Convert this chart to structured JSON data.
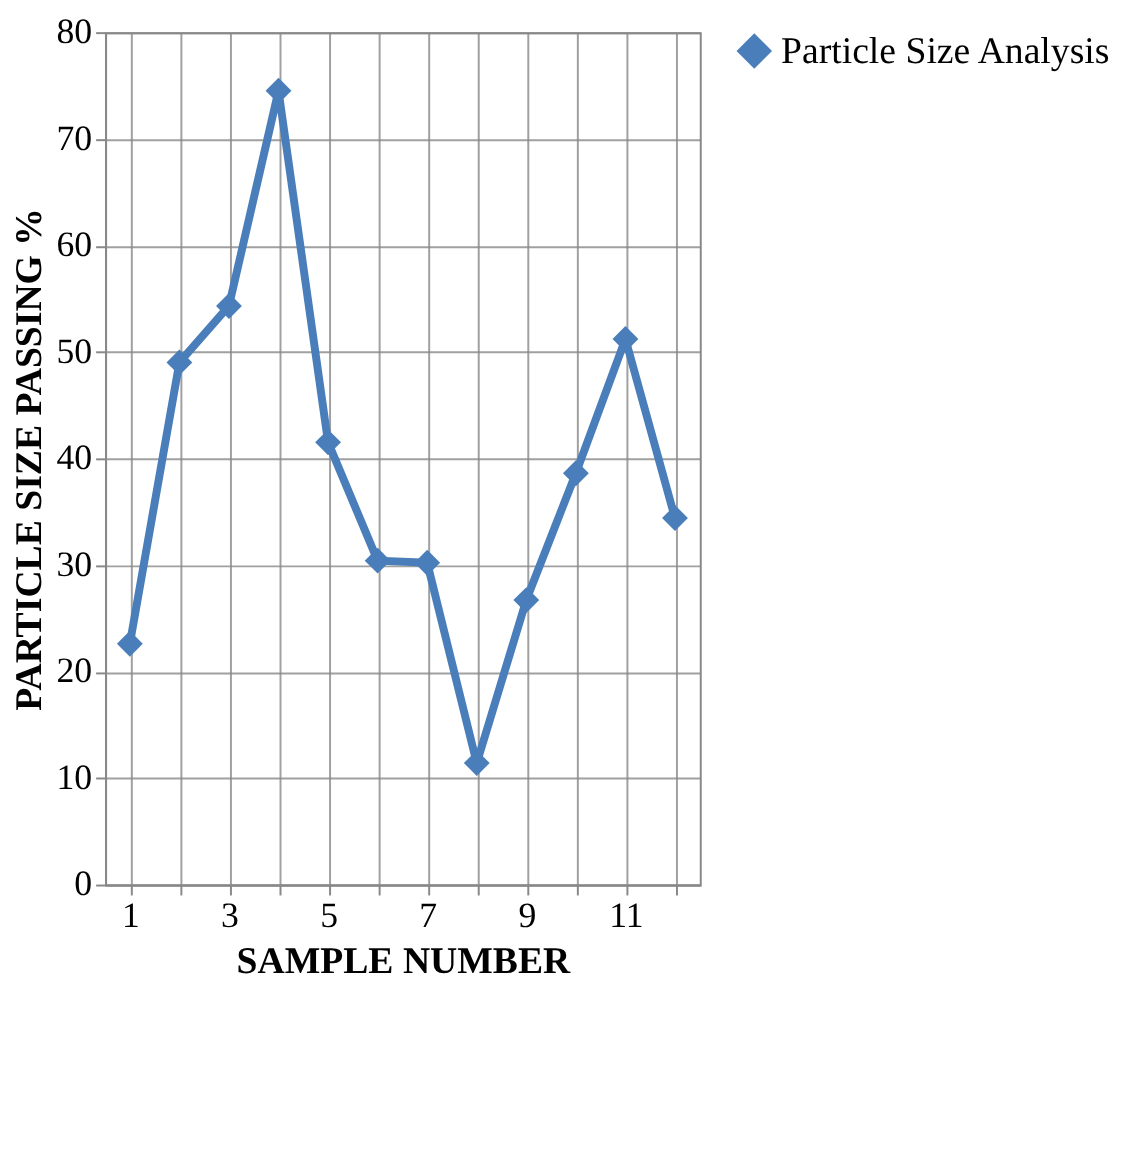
{
  "chart_data": {
    "type": "line",
    "xlabel": "SAMPLE NUMBER",
    "ylabel": "PARTICLE SIZE PASSING %",
    "categories": [
      "1",
      null,
      "3",
      null,
      "5",
      null,
      "7",
      null,
      "9",
      null,
      "11",
      null
    ],
    "series": [
      {
        "name": "Particle Size Analysis",
        "color": "#4a7ebb",
        "values": [
          22.6,
          49.0,
          54.3,
          74.5,
          41.5,
          30.4,
          30.2,
          11.4,
          26.7,
          38.6,
          51.2,
          34.4
        ]
      }
    ],
    "ylim": [
      0,
      80
    ],
    "yticks": [
      0,
      10,
      20,
      30,
      40,
      50,
      60,
      70,
      80
    ],
    "grid": true,
    "legend": "right",
    "marker": "diamond",
    "line_style": "solid"
  }
}
